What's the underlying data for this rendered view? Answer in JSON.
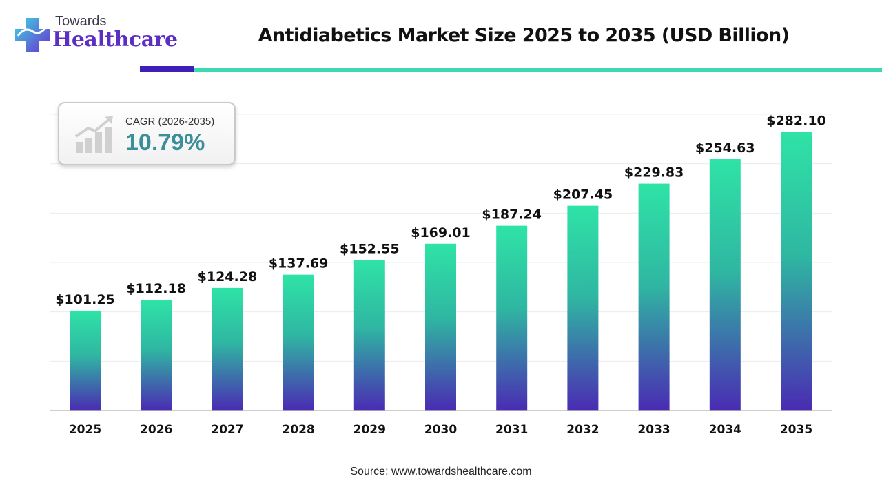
{
  "logo": {
    "line1": "Towards",
    "line2": "Healthcare"
  },
  "colors": {
    "brand_purple": "#3f1fb5",
    "accent_teal": "#3dd9b4",
    "bar_top": "#2fe3a6",
    "bar_bottom": "#4a2bb3",
    "cagr_value": "#3a8f98"
  },
  "cagr": {
    "label": "CAGR (2026-2035)",
    "value": "10.79%",
    "icon": "growth-chart-icon"
  },
  "source": "Source: www.towardshealthcare.com",
  "chart_data": {
    "type": "bar",
    "title": "Antidiabetics Market Size 2025 to 2035 (USD Billion)",
    "xlabel": "",
    "ylabel": "",
    "ylim": [
      0,
      300
    ],
    "grid": true,
    "categories": [
      "2025",
      "2026",
      "2027",
      "2028",
      "2029",
      "2030",
      "2031",
      "2032",
      "2033",
      "2034",
      "2035"
    ],
    "values": [
      101.25,
      112.18,
      124.28,
      137.69,
      152.55,
      169.01,
      187.24,
      207.45,
      229.83,
      254.63,
      282.1
    ],
    "value_labels": [
      "$101.25",
      "$112.18",
      "$124.28",
      "$137.69",
      "$152.55",
      "$169.01",
      "$187.24",
      "$207.45",
      "$229.83",
      "$254.63",
      "$282.10"
    ]
  }
}
